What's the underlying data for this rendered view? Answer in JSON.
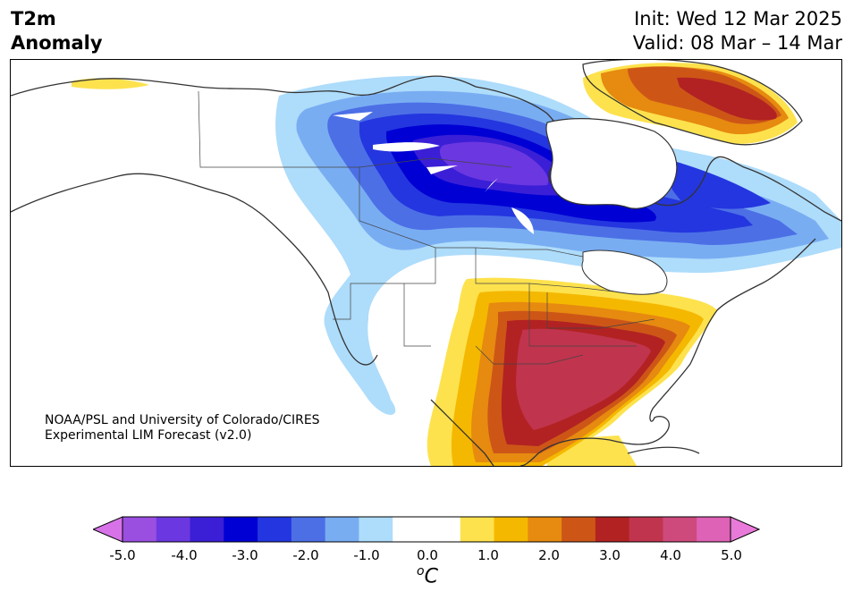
{
  "header": {
    "title_line1": "T2m",
    "title_line2": "Anomaly",
    "init": "Init: Wed 12 Mar 2025",
    "valid": "Valid: 08 Mar – 14 Mar"
  },
  "credit": {
    "line1": "NOAA/PSL and University of Colorado/CIRES",
    "line2": "Experimental LIM Forecast (v2.0)"
  },
  "colorbar": {
    "tick_labels": [
      "-5.0",
      "-4.0",
      "-3.0",
      "-2.0",
      "-1.0",
      "0.0",
      "1.0",
      "2.0",
      "3.0",
      "4.0",
      "5.0"
    ],
    "unit_symbol": "o",
    "unit_letter": "C",
    "colors": [
      "#9a4fe0",
      "#6b37e0",
      "#3a1fd6",
      "#0000d4",
      "#2436df",
      "#4c6fe6",
      "#79adf2",
      "#aedcfb",
      "#ffffff",
      "#ffffff",
      "#fde24d",
      "#f5b800",
      "#e68a10",
      "#cd5617",
      "#b22222",
      "#c1344e",
      "#cf4a7c",
      "#de62b6"
    ],
    "under_color": "#d872e8",
    "over_color": "#e97ad9"
  }
}
